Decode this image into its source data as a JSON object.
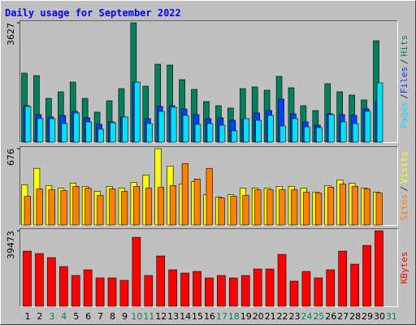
{
  "chart_data": [
    {
      "type": "bar",
      "title": "Daily usage for September 2022",
      "categories": [
        "1",
        "2",
        "3",
        "4",
        "5",
        "6",
        "7",
        "8",
        "9",
        "10",
        "11",
        "12",
        "13",
        "14",
        "15",
        "16",
        "17",
        "18",
        "19",
        "20",
        "21",
        "22",
        "23",
        "24",
        "25",
        "26",
        "27",
        "28",
        "29",
        "30",
        "31"
      ],
      "series": [
        {
          "name": "Hits",
          "color": "#00805c",
          "values": [
            2097,
            2023,
            1332,
            1530,
            1826,
            1332,
            913,
            1258,
            1628,
            3627,
            1702,
            2369,
            2344,
            1900,
            1604,
            1234,
            1110,
            1036,
            1628,
            1678,
            1579,
            1998,
            1653,
            1110,
            962,
            1776,
            1530,
            1431,
            1283,
            3084,
            null
          ]
        },
        {
          "name": "Files",
          "color": "#0040ff",
          "values": [
            1110,
            839,
            765,
            814,
            938,
            740,
            543,
            617,
            765,
            1801,
            716,
            1086,
            1110,
            1012,
            839,
            716,
            740,
            666,
            691,
            888,
            962,
            1308,
            864,
            617,
            518,
            864,
            839,
            814,
            1012,
            1234,
            null
          ]
        },
        {
          "name": "Pages",
          "color": "#00e0ff",
          "values": [
            1086,
            716,
            716,
            567,
            888,
            617,
            395,
            592,
            765,
            1826,
            567,
            938,
            1061,
            814,
            543,
            567,
            518,
            346,
            716,
            666,
            814,
            494,
            716,
            469,
            444,
            839,
            617,
            567,
            938,
            1801,
            null
          ]
        }
      ],
      "ylim": [
        0,
        3627
      ],
      "yticks": [
        3627
      ],
      "legend_separator": "/"
    },
    {
      "type": "bar",
      "categories": [
        "1",
        "2",
        "3",
        "4",
        "5",
        "6",
        "7",
        "8",
        "9",
        "10",
        "11",
        "12",
        "13",
        "14",
        "15",
        "16",
        "17",
        "18",
        "19",
        "20",
        "21",
        "22",
        "23",
        "24",
        "25",
        "26",
        "27",
        "28",
        "29",
        "30",
        "31"
      ],
      "series": [
        {
          "name": "Visits",
          "color": "#ffff00",
          "values": [
            356,
            502,
            349,
            327,
            371,
            342,
            298,
            342,
            327,
            378,
            443,
            676,
            523,
            363,
            385,
            269,
            247,
            269,
            327,
            327,
            327,
            342,
            342,
            327,
            291,
            349,
            400,
            371,
            327,
            291,
            null
          ]
        },
        {
          "name": "Sites",
          "color": "#ff8000",
          "values": [
            254,
            320,
            313,
            305,
            342,
            327,
            262,
            320,
            298,
            342,
            327,
            334,
            349,
            545,
            407,
            502,
            240,
            254,
            262,
            313,
            313,
            313,
            313,
            291,
            283,
            334,
            363,
            342,
            320,
            283,
            null
          ]
        }
      ],
      "ylim": [
        0,
        676
      ],
      "yticks": [
        676
      ],
      "legend_separator": "/"
    },
    {
      "type": "bar",
      "categories": [
        "1",
        "2",
        "3",
        "4",
        "5",
        "6",
        "7",
        "8",
        "9",
        "10",
        "11",
        "12",
        "13",
        "14",
        "15",
        "16",
        "17",
        "18",
        "19",
        "20",
        "21",
        "22",
        "23",
        "24",
        "25",
        "26",
        "27",
        "28",
        "29",
        "30",
        "31"
      ],
      "series": [
        {
          "name": "KBytes",
          "color": "#ff0000",
          "values": [
            28830,
            27560,
            25440,
            20780,
            16110,
            19080,
            14840,
            14840,
            13570,
            36040,
            16110,
            26290,
            19080,
            17380,
            18230,
            14840,
            16110,
            14840,
            16110,
            19500,
            19500,
            27130,
            13140,
            18230,
            14840,
            19080,
            28830,
            22050,
            31800,
            39473,
            null
          ]
        }
      ],
      "ylim": [
        0,
        39473
      ],
      "yticks": [
        39473
      ],
      "weekends": [
        "3",
        "4",
        "10",
        "11",
        "17",
        "18",
        "24",
        "25",
        "31"
      ],
      "weekend_color": "#008060"
    }
  ]
}
